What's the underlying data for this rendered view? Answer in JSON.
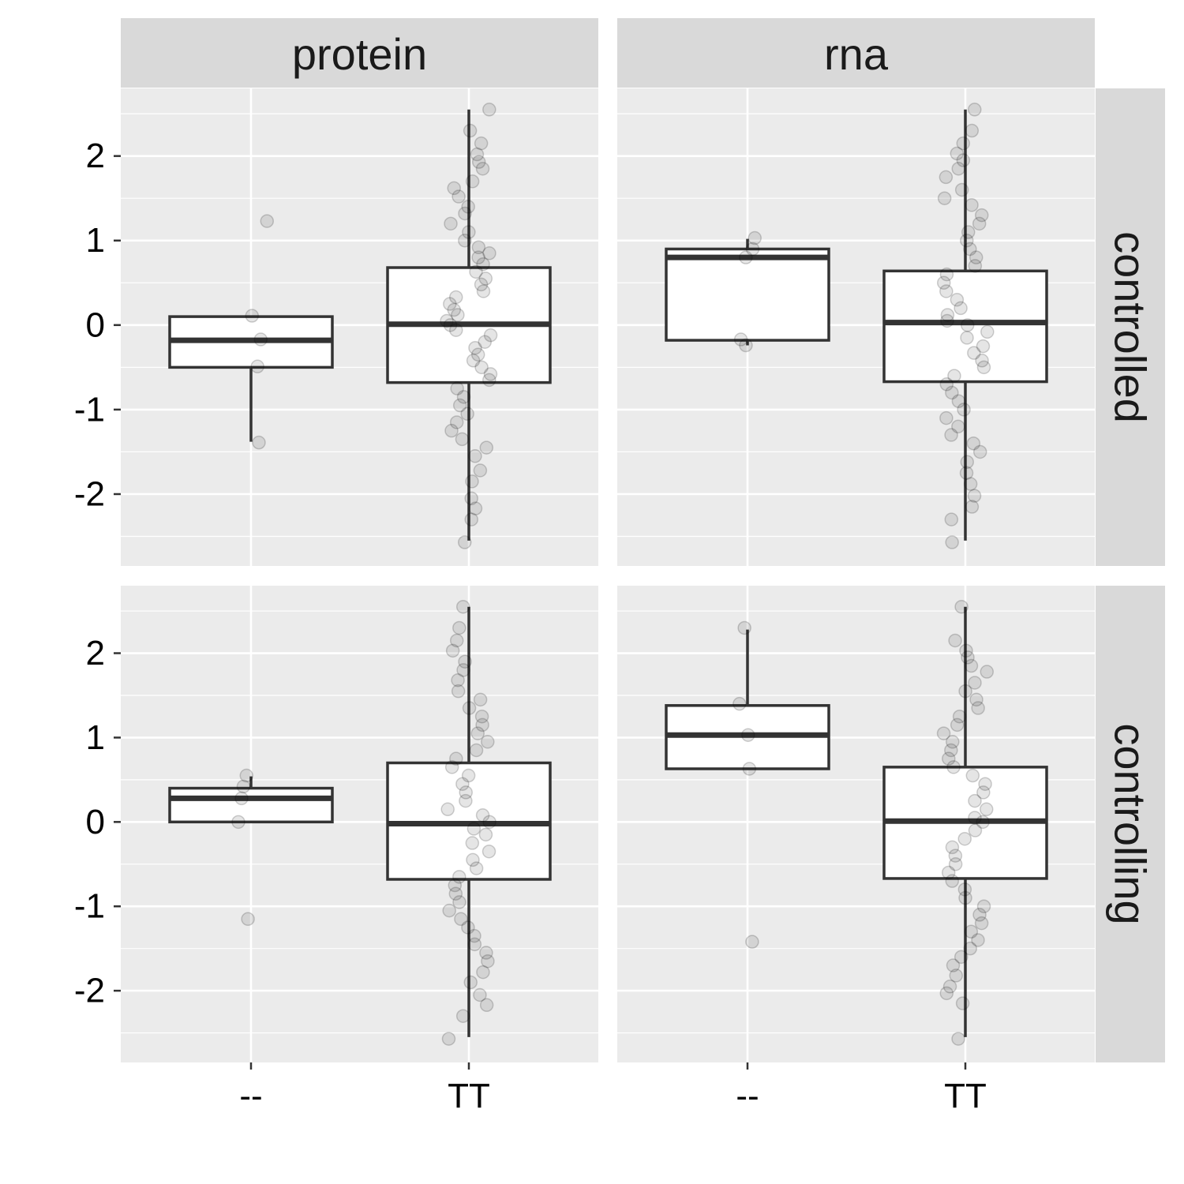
{
  "chart_data": {
    "type": "boxplot",
    "facet_columns": [
      "protein",
      "rna"
    ],
    "facet_rows": [
      "controlled",
      "controlling"
    ],
    "x_categories": [
      "--",
      "TT"
    ],
    "ylim": [
      -2.85,
      2.8
    ],
    "y_ticks": [
      -2,
      -1,
      0,
      1,
      2
    ],
    "y_tick_labels": [
      "-2",
      "-1",
      "0",
      "1",
      "2"
    ],
    "grid": true,
    "panels": [
      {
        "column": "protein",
        "row": "controlled",
        "boxes": [
          {
            "category": "--",
            "q1": -0.5,
            "median": -0.18,
            "q3": 0.1,
            "whisker_low": -1.38,
            "whisker_high": 0.1,
            "points": [
              1.23,
              0.11,
              -0.17,
              -0.49,
              -1.39
            ]
          },
          {
            "category": "TT",
            "q1": -0.68,
            "median": 0.01,
            "q3": 0.68,
            "whisker_low": -2.55,
            "whisker_high": 2.55,
            "points": [
              2.55,
              2.3,
              2.15,
              2.02,
              1.93,
              1.85,
              1.7,
              1.62,
              1.52,
              1.4,
              1.32,
              1.2,
              1.1,
              1.0,
              0.92,
              0.85,
              0.8,
              0.72,
              0.63,
              0.55,
              0.48,
              0.4,
              0.33,
              0.25,
              0.18,
              0.12,
              0.05,
              0.0,
              -0.06,
              -0.12,
              -0.2,
              -0.27,
              -0.35,
              -0.42,
              -0.5,
              -0.58,
              -0.65,
              -0.75,
              -0.85,
              -0.95,
              -1.05,
              -1.15,
              -1.25,
              -1.35,
              -1.45,
              -1.55,
              -1.72,
              -1.85,
              -2.05,
              -2.17,
              -2.3,
              -2.57
            ]
          }
        ]
      },
      {
        "column": "rna",
        "row": "controlled",
        "boxes": [
          {
            "category": "--",
            "q1": -0.18,
            "median": 0.8,
            "q3": 0.9,
            "whisker_low": -0.24,
            "whisker_high": 1.02,
            "points": [
              1.03,
              0.9,
              0.8,
              -0.17,
              -0.24
            ]
          },
          {
            "category": "TT",
            "q1": -0.67,
            "median": 0.03,
            "q3": 0.64,
            "whisker_low": -2.55,
            "whisker_high": 2.55,
            "points": [
              2.55,
              2.3,
              2.15,
              2.03,
              1.95,
              1.85,
              1.75,
              1.6,
              1.5,
              1.42,
              1.3,
              1.2,
              1.1,
              1.0,
              0.9,
              0.8,
              0.7,
              0.6,
              0.5,
              0.4,
              0.3,
              0.2,
              0.12,
              0.05,
              0.0,
              -0.08,
              -0.15,
              -0.25,
              -0.33,
              -0.42,
              -0.5,
              -0.6,
              -0.7,
              -0.8,
              -0.9,
              -1.0,
              -1.1,
              -1.2,
              -1.3,
              -1.4,
              -1.5,
              -1.62,
              -1.75,
              -1.88,
              -2.02,
              -2.15,
              -2.3,
              -2.57
            ]
          }
        ]
      },
      {
        "column": "protein",
        "row": "controlling",
        "boxes": [
          {
            "category": "--",
            "q1": 0.0,
            "median": 0.28,
            "q3": 0.4,
            "whisker_low": 0.0,
            "whisker_high": 0.54,
            "points": [
              0.55,
              0.42,
              0.28,
              0.0,
              -1.15
            ]
          },
          {
            "category": "TT",
            "q1": -0.68,
            "median": -0.02,
            "q3": 0.7,
            "whisker_low": -2.55,
            "whisker_high": 2.55,
            "points": [
              2.55,
              2.3,
              2.15,
              2.03,
              1.9,
              1.8,
              1.68,
              1.55,
              1.45,
              1.35,
              1.25,
              1.15,
              1.05,
              0.95,
              0.85,
              0.75,
              0.65,
              0.55,
              0.45,
              0.35,
              0.25,
              0.15,
              0.08,
              0.0,
              -0.08,
              -0.15,
              -0.25,
              -0.35,
              -0.45,
              -0.55,
              -0.65,
              -0.75,
              -0.85,
              -0.95,
              -1.05,
              -1.15,
              -1.25,
              -1.35,
              -1.45,
              -1.55,
              -1.65,
              -1.78,
              -1.9,
              -2.05,
              -2.17,
              -2.3,
              -2.57
            ]
          }
        ]
      },
      {
        "column": "rna",
        "row": "controlling",
        "boxes": [
          {
            "category": "--",
            "q1": 0.63,
            "median": 1.03,
            "q3": 1.38,
            "whisker_low": 0.63,
            "whisker_high": 2.28,
            "points": [
              2.3,
              1.4,
              1.03,
              0.63,
              -1.42
            ]
          },
          {
            "category": "TT",
            "q1": -0.67,
            "median": 0.01,
            "q3": 0.65,
            "whisker_low": -2.55,
            "whisker_high": 2.55,
            "points": [
              2.55,
              2.15,
              2.03,
              1.95,
              1.85,
              1.78,
              1.65,
              1.55,
              1.45,
              1.35,
              1.25,
              1.15,
              1.05,
              0.95,
              0.85,
              0.75,
              0.65,
              0.55,
              0.45,
              0.35,
              0.25,
              0.15,
              0.05,
              0.0,
              -0.1,
              -0.2,
              -0.3,
              -0.4,
              -0.5,
              -0.6,
              -0.7,
              -0.8,
              -0.9,
              -1.0,
              -1.1,
              -1.2,
              -1.3,
              -1.4,
              -1.5,
              -1.6,
              -1.7,
              -1.82,
              -1.95,
              -2.03,
              -2.15,
              -2.57
            ]
          }
        ]
      }
    ]
  }
}
